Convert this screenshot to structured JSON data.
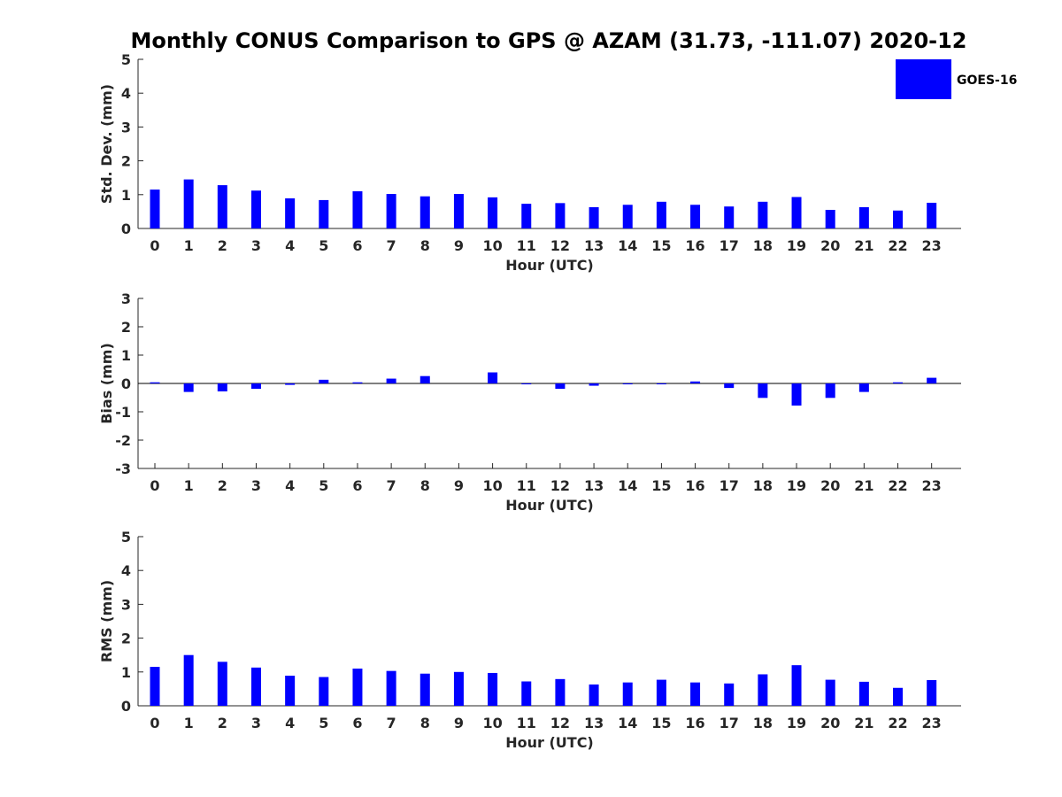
{
  "figure_title": "Monthly CONUS Comparison to GPS @ AZAM (31.73, -111.07) 2020-12",
  "legend": {
    "label": "GOES-16",
    "color": "#0000ff"
  },
  "bar_color": "#0000ff",
  "chart_data": [
    {
      "type": "bar",
      "title": "Monthly CONUS Comparison to GPS @ AZAM (31.73, -111.07) 2020-12",
      "xlabel": "Hour (UTC)",
      "ylabel": "Std. Dev. (mm)",
      "ylim": [
        0,
        5
      ],
      "yticks": [
        "0",
        "1",
        "2",
        "3",
        "4",
        "5"
      ],
      "categories": [
        "0",
        "1",
        "2",
        "3",
        "4",
        "5",
        "6",
        "7",
        "8",
        "9",
        "10",
        "11",
        "12",
        "13",
        "14",
        "15",
        "16",
        "17",
        "18",
        "19",
        "20",
        "21",
        "22",
        "23"
      ],
      "series": [
        {
          "name": "GOES-16",
          "values": [
            1.15,
            1.45,
            1.28,
            1.12,
            0.89,
            0.84,
            1.1,
            1.02,
            0.95,
            1.02,
            0.92,
            0.73,
            0.75,
            0.63,
            0.7,
            0.79,
            0.7,
            0.65,
            0.79,
            0.93,
            0.55,
            0.63,
            0.53,
            0.76
          ]
        }
      ]
    },
    {
      "type": "bar",
      "xlabel": "Hour (UTC)",
      "ylabel": "Bias (mm)",
      "ylim": [
        -3,
        3
      ],
      "yticks": [
        "-3",
        "-2",
        "-1",
        "0",
        "1",
        "2",
        "3"
      ],
      "categories": [
        "0",
        "1",
        "2",
        "3",
        "4",
        "5",
        "6",
        "7",
        "8",
        "9",
        "10",
        "11",
        "12",
        "13",
        "14",
        "15",
        "16",
        "17",
        "18",
        "19",
        "20",
        "21",
        "22",
        "23"
      ],
      "series": [
        {
          "name": "GOES-16",
          "values": [
            0.04,
            -0.3,
            -0.28,
            -0.19,
            -0.05,
            0.13,
            0.04,
            0.17,
            0.26,
            0.0,
            0.39,
            -0.02,
            -0.19,
            -0.08,
            -0.02,
            -0.02,
            0.07,
            -0.16,
            -0.51,
            -0.78,
            -0.51,
            -0.3,
            0.04,
            0.2
          ]
        }
      ]
    },
    {
      "type": "bar",
      "xlabel": "Hour (UTC)",
      "ylabel": "RMS (mm)",
      "ylim": [
        0,
        5
      ],
      "yticks": [
        "0",
        "1",
        "2",
        "3",
        "4",
        "5"
      ],
      "categories": [
        "0",
        "1",
        "2",
        "3",
        "4",
        "5",
        "6",
        "7",
        "8",
        "9",
        "10",
        "11",
        "12",
        "13",
        "14",
        "15",
        "16",
        "17",
        "18",
        "19",
        "20",
        "21",
        "22",
        "23"
      ],
      "series": [
        {
          "name": "GOES-16",
          "values": [
            1.15,
            1.5,
            1.3,
            1.13,
            0.89,
            0.85,
            1.1,
            1.03,
            0.95,
            1.0,
            0.97,
            0.72,
            0.79,
            0.63,
            0.69,
            0.77,
            0.69,
            0.66,
            0.93,
            1.2,
            0.77,
            0.71,
            0.53,
            0.76
          ]
        }
      ]
    }
  ]
}
